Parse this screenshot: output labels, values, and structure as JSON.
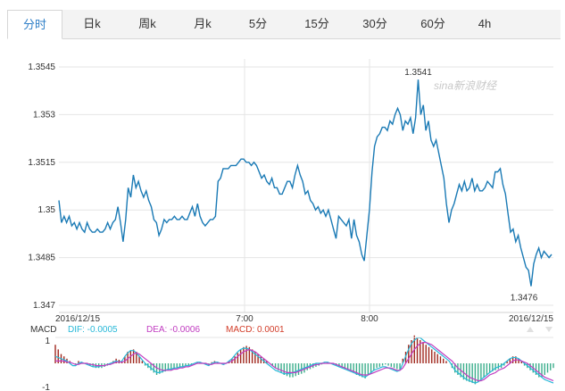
{
  "tabs": [
    {
      "label": "分时",
      "active": true
    },
    {
      "label": "日k",
      "active": false
    },
    {
      "label": "周k",
      "active": false
    },
    {
      "label": "月k",
      "active": false
    },
    {
      "label": "5分",
      "active": false
    },
    {
      "label": "15分",
      "active": false
    },
    {
      "label": "30分",
      "active": false
    },
    {
      "label": "60分",
      "active": false
    },
    {
      "label": "4h",
      "active": false
    }
  ],
  "watermark": "sina新浪财经",
  "colors": {
    "line": "#1a7ab5",
    "grid": "#e5e5e5",
    "active_tab": "#2d7ec7",
    "dif": "#27b8d8",
    "dea": "#c03cc0",
    "macd": "#d23c28",
    "bar_up": "#a0281e",
    "bar_down": "#3cae8c"
  },
  "chart_data": [
    {
      "type": "line",
      "title": "",
      "xlabel": "",
      "ylabel": "",
      "x_ticks": [
        "2016/12/15",
        "7:00",
        "8:00",
        "2016/12/15"
      ],
      "y_ticks": [
        "1.3545",
        "1.353",
        "1.3515",
        "1.35",
        "1.3485",
        "1.347"
      ],
      "ylim": [
        1.347,
        1.3545
      ],
      "grid": true,
      "annotations": [
        {
          "label": "1.3541"
        },
        {
          "label": "1.3476"
        }
      ],
      "series": [
        {
          "values": [
            1.3503,
            1.3496,
            1.3498,
            1.3496,
            1.3498,
            1.3495,
            1.3496,
            1.3494,
            1.3496,
            1.3494,
            1.3493,
            1.3496,
            1.3494,
            1.3493,
            1.3493,
            1.3494,
            1.3493,
            1.3493,
            1.3494,
            1.3496,
            1.3494,
            1.3496,
            1.3497,
            1.3501,
            1.3496,
            1.349,
            1.3497,
            1.3507,
            1.3504,
            1.3511,
            1.3507,
            1.3509,
            1.3506,
            1.3504,
            1.3506,
            1.3503,
            1.3501,
            1.3497,
            1.3496,
            1.3492,
            1.3494,
            1.3497,
            1.3496,
            1.3497,
            1.3497,
            1.3498,
            1.3497,
            1.3497,
            1.3498,
            1.3497,
            1.3497,
            1.3499,
            1.3501,
            1.3498,
            1.3502,
            1.3498,
            1.3496,
            1.3495,
            1.3496,
            1.3497,
            1.3497,
            1.3498,
            1.3509,
            1.351,
            1.3513,
            1.3513,
            1.3513,
            1.3514,
            1.3514,
            1.3514,
            1.3515,
            1.3516,
            1.3516,
            1.3515,
            1.3515,
            1.3514,
            1.3515,
            1.3514,
            1.3512,
            1.351,
            1.3511,
            1.3509,
            1.3508,
            1.351,
            1.3507,
            1.3507,
            1.3505,
            1.3505,
            1.3507,
            1.3509,
            1.3509,
            1.3507,
            1.3511,
            1.3514,
            1.3511,
            1.3509,
            1.3505,
            1.3506,
            1.3503,
            1.3502,
            1.35,
            1.3501,
            1.3499,
            1.35,
            1.3498,
            1.35,
            1.3497,
            1.3494,
            1.3491,
            1.3498,
            1.3497,
            1.3496,
            1.3495,
            1.3497,
            1.3491,
            1.3497,
            1.3492,
            1.349,
            1.3486,
            1.3484,
            1.3492,
            1.35,
            1.3512,
            1.352,
            1.3523,
            1.3524,
            1.3526,
            1.3526,
            1.3525,
            1.3528,
            1.3527,
            1.353,
            1.3532,
            1.353,
            1.3525,
            1.3528,
            1.3527,
            1.3529,
            1.3524,
            1.3529,
            1.3541,
            1.353,
            1.3533,
            1.3525,
            1.3528,
            1.3522,
            1.352,
            1.3522,
            1.3518,
            1.3514,
            1.351,
            1.3502,
            1.3496,
            1.35,
            1.3502,
            1.3505,
            1.3508,
            1.3506,
            1.3509,
            1.3506,
            1.3507,
            1.351,
            1.3506,
            1.3508,
            1.3506,
            1.3506,
            1.3507,
            1.3509,
            1.3508,
            1.3507,
            1.3512,
            1.3512,
            1.3513,
            1.3508,
            1.3505,
            1.3499,
            1.3493,
            1.3494,
            1.349,
            1.3492,
            1.3488,
            1.3485,
            1.3482,
            1.3481,
            1.3476,
            1.3483,
            1.3486,
            1.3488,
            1.3485,
            1.3487,
            1.3486,
            1.3485,
            1.3486
          ]
        }
      ]
    },
    {
      "type": "bar",
      "title": "",
      "legend": [
        {
          "label": "MACD",
          "value": ""
        },
        {
          "label": "DIF:",
          "value": "-0.0005"
        },
        {
          "label": "DEA:",
          "value": "-0.0006"
        },
        {
          "label": "MACD:",
          "value": "0.0001"
        }
      ],
      "y_ticks": [
        "1",
        "-1"
      ],
      "ylim": [
        -1.2,
        1.2
      ],
      "macd_values": [
        0.8,
        0.6,
        0.4,
        0.3,
        0.2,
        0.1,
        0.0,
        -0.05,
        0.1,
        0.05,
        0.0,
        -0.05,
        -0.1,
        -0.15,
        -0.2,
        -0.2,
        -0.2,
        -0.15,
        -0.1,
        -0.05,
        0.1,
        0.2,
        0.15,
        0.1,
        0.3,
        0.5,
        0.55,
        0.6,
        0.5,
        0.3,
        0.1,
        -0.1,
        -0.2,
        -0.3,
        -0.4,
        -0.5,
        -0.45,
        -0.4,
        -0.35,
        -0.3,
        -0.3,
        -0.25,
        -0.2,
        -0.2,
        -0.15,
        -0.1,
        -0.1,
        -0.05,
        0.0,
        0.05,
        0.05,
        0.0,
        -0.05,
        -0.1,
        0.05,
        0.1,
        0.05,
        0.0,
        -0.05,
        0.0,
        0.1,
        0.2,
        0.3,
        0.45,
        0.6,
        0.7,
        0.75,
        0.7,
        0.6,
        0.5,
        0.4,
        0.3,
        0.2,
        0.1,
        0.0,
        -0.1,
        -0.2,
        -0.3,
        -0.4,
        -0.5,
        -0.55,
        -0.6,
        -0.6,
        -0.55,
        -0.5,
        -0.45,
        -0.4,
        -0.3,
        -0.25,
        -0.2,
        -0.15,
        -0.1,
        -0.05,
        0.0,
        0.05,
        0.0,
        -0.05,
        -0.1,
        -0.15,
        -0.2,
        -0.25,
        -0.3,
        -0.35,
        -0.4,
        -0.5,
        -0.55,
        -0.6,
        -0.65,
        -0.5,
        -0.4,
        -0.3,
        -0.2,
        -0.15,
        -0.1,
        -0.05,
        -0.1,
        -0.15,
        -0.2,
        -0.25,
        -0.3,
        0.2,
        0.5,
        0.8,
        1.0,
        1.2,
        1.1,
        1.0,
        0.9,
        0.8,
        0.7,
        0.6,
        0.5,
        0.4,
        0.3,
        0.2,
        0.1,
        0.0,
        -0.2,
        -0.4,
        -0.5,
        -0.6,
        -0.7,
        -0.75,
        -0.8,
        -0.85,
        -0.9,
        -0.8,
        -0.7,
        -0.6,
        -0.5,
        -0.4,
        -0.35,
        -0.3,
        -0.25,
        -0.2,
        -0.1,
        0.1,
        0.2,
        0.3,
        0.3,
        0.2,
        0.1,
        -0.1,
        -0.2,
        -0.3,
        -0.4,
        -0.5,
        -0.6,
        -0.6,
        -0.5,
        -0.4,
        -0.3,
        -0.2
      ],
      "dif": [
        0.3,
        0.25,
        0.2,
        0.15,
        0.1,
        0.0,
        -0.1,
        -0.1,
        0.0,
        0.05,
        0.0,
        -0.05,
        -0.1,
        -0.15,
        -0.15,
        -0.15,
        -0.1,
        -0.1,
        -0.05,
        0.0,
        0.05,
        0.1,
        0.05,
        0.1,
        0.3,
        0.45,
        0.55,
        0.55,
        0.45,
        0.3,
        0.15,
        0.0,
        -0.1,
        -0.2,
        -0.3,
        -0.4,
        -0.4,
        -0.35,
        -0.3,
        -0.25,
        -0.25,
        -0.2,
        -0.2,
        -0.15,
        -0.15,
        -0.1,
        -0.1,
        -0.05,
        0.0,
        0.05,
        0.05,
        0.0,
        -0.05,
        -0.1,
        0.0,
        0.05,
        0.05,
        0.0,
        -0.05,
        0.0,
        0.1,
        0.2,
        0.35,
        0.5,
        0.6,
        0.65,
        0.65,
        0.6,
        0.5,
        0.4,
        0.3,
        0.2,
        0.1,
        0.0,
        -0.1,
        -0.2,
        -0.3,
        -0.35,
        -0.4,
        -0.45,
        -0.45,
        -0.45,
        -0.4,
        -0.35,
        -0.3,
        -0.25,
        -0.2,
        -0.15,
        -0.1,
        -0.05,
        0.0,
        0.0,
        0.0,
        0.05,
        0.05,
        0.0,
        -0.05,
        -0.1,
        -0.15,
        -0.2,
        -0.25,
        -0.3,
        -0.35,
        -0.4,
        -0.45,
        -0.5,
        -0.55,
        -0.6,
        -0.5,
        -0.4,
        -0.3,
        -0.25,
        -0.2,
        -0.15,
        -0.15,
        -0.2,
        -0.25,
        -0.3,
        -0.35,
        -0.3,
        0.0,
        0.3,
        0.6,
        0.85,
        1.0,
        1.1,
        1.1,
        1.0,
        0.9,
        0.8,
        0.7,
        0.6,
        0.5,
        0.4,
        0.3,
        0.2,
        0.1,
        -0.1,
        -0.3,
        -0.4,
        -0.5,
        -0.6,
        -0.7,
        -0.75,
        -0.8,
        -0.85,
        -0.8,
        -0.7,
        -0.6,
        -0.5,
        -0.4,
        -0.3,
        -0.2,
        -0.15,
        -0.1,
        0.0,
        0.1,
        0.2,
        0.25,
        0.25,
        0.2,
        0.1,
        0.0,
        -0.1,
        -0.2,
        -0.3,
        -0.4,
        -0.5,
        -0.6,
        -0.7,
        -0.75,
        -0.8,
        -0.85
      ],
      "dea": [
        0.1,
        0.1,
        0.1,
        0.1,
        0.05,
        0.05,
        0.0,
        -0.05,
        -0.05,
        0.0,
        0.0,
        0.0,
        -0.05,
        -0.05,
        -0.1,
        -0.1,
        -0.1,
        -0.1,
        -0.05,
        -0.05,
        0.0,
        0.05,
        0.05,
        0.05,
        0.1,
        0.2,
        0.3,
        0.4,
        0.45,
        0.4,
        0.3,
        0.2,
        0.1,
        0.0,
        -0.1,
        -0.2,
        -0.25,
        -0.3,
        -0.3,
        -0.3,
        -0.3,
        -0.25,
        -0.25,
        -0.2,
        -0.2,
        -0.15,
        -0.15,
        -0.1,
        -0.05,
        0.0,
        0.0,
        0.0,
        0.0,
        -0.05,
        -0.05,
        0.0,
        0.0,
        0.0,
        0.0,
        0.0,
        0.05,
        0.1,
        0.2,
        0.3,
        0.4,
        0.5,
        0.55,
        0.6,
        0.55,
        0.5,
        0.4,
        0.3,
        0.2,
        0.1,
        0.0,
        -0.1,
        -0.2,
        -0.25,
        -0.3,
        -0.35,
        -0.4,
        -0.4,
        -0.4,
        -0.4,
        -0.35,
        -0.3,
        -0.25,
        -0.2,
        -0.15,
        -0.1,
        -0.05,
        -0.05,
        0.0,
        0.0,
        0.0,
        0.0,
        0.0,
        -0.05,
        -0.1,
        -0.15,
        -0.2,
        -0.25,
        -0.3,
        -0.35,
        -0.4,
        -0.45,
        -0.5,
        -0.5,
        -0.5,
        -0.45,
        -0.4,
        -0.35,
        -0.3,
        -0.25,
        -0.2,
        -0.2,
        -0.2,
        -0.25,
        -0.3,
        -0.3,
        -0.2,
        0.0,
        0.2,
        0.4,
        0.6,
        0.75,
        0.85,
        0.9,
        0.9,
        0.85,
        0.8,
        0.7,
        0.6,
        0.5,
        0.4,
        0.3,
        0.2,
        0.1,
        -0.05,
        -0.2,
        -0.3,
        -0.4,
        -0.5,
        -0.6,
        -0.65,
        -0.7,
        -0.75,
        -0.75,
        -0.7,
        -0.6,
        -0.5,
        -0.45,
        -0.4,
        -0.3,
        -0.25,
        -0.2,
        -0.1,
        0.0,
        0.1,
        0.15,
        0.15,
        0.1,
        0.05,
        0.0,
        -0.1,
        -0.2,
        -0.3,
        -0.4,
        -0.5,
        -0.6,
        -0.65,
        -0.7,
        -0.75
      ]
    }
  ]
}
